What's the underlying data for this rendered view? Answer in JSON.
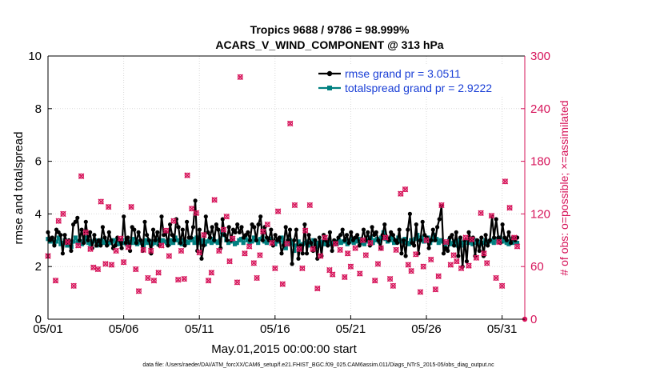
{
  "chart_data": {
    "type": "line",
    "title_line1": "Tropics 9688 / 9786 = 98.999%",
    "title_line2": "ACARS_V_WIND_COMPONENT @ 313 hPa",
    "xlabel": "May.01,2015 00:00:00 start",
    "ylabel_left": "rmse and totalspread",
    "ylabel_right": "# of obs: o=possible; ×=assimilated",
    "footer": "data file: /Users/raeder/DAI/ATM_forcXX/CAM6_setup/f.e21.FHIST_BGC.f09_025.CAM6assim.011/Diags_NTrS_2015-05/obs_diag_output.nc",
    "xlim": [
      0,
      31.5
    ],
    "ylim_left": [
      0,
      10
    ],
    "ylim_right": [
      0,
      300
    ],
    "x_ticks": [
      {
        "v": 0,
        "label": "05/01"
      },
      {
        "v": 5,
        "label": "05/06"
      },
      {
        "v": 10,
        "label": "05/11"
      },
      {
        "v": 15,
        "label": "05/16"
      },
      {
        "v": 20,
        "label": "05/21"
      },
      {
        "v": 25,
        "label": "05/26"
      },
      {
        "v": 30,
        "label": "05/31"
      }
    ],
    "y_ticks_left": [
      0,
      2,
      4,
      6,
      8,
      10
    ],
    "y_ticks_right": [
      0,
      60,
      120,
      180,
      240,
      300
    ],
    "colors": {
      "rmse": "#000000",
      "spread": "#008080",
      "obs": "#d6145a"
    },
    "series": [
      {
        "name": "rmse",
        "label": "rmse grand pr = 3.0511",
        "axis": "left",
        "values": [
          3.3,
          3.0,
          3.1,
          2.8,
          3.4,
          3.3,
          3.2,
          2.5,
          3.2,
          2.9,
          3.0,
          2.6,
          3.6,
          3.7,
          3.85,
          3.0,
          3.4,
          2.9,
          3.7,
          3.0,
          3.3,
          2.7,
          3.2,
          2.8,
          3.0,
          2.8,
          3.5,
          3.1,
          2.8,
          3.3,
          3.0,
          2.7,
          2.8,
          3.1,
          3.0,
          2.7,
          3.9,
          2.9,
          3.1,
          2.6,
          3.5,
          3.4,
          2.9,
          3.3,
          3.0,
          2.6,
          3.7,
          3.2,
          3.0,
          2.5,
          3.4,
          3.0,
          3.3,
          2.8,
          3.9,
          3.2,
          3.3,
          2.8,
          3.6,
          3.2,
          3.0,
          3.8,
          3.5,
          2.9,
          3.4,
          2.8,
          3.7,
          3.1,
          3.1,
          3.5,
          4.5,
          2.6,
          3.4,
          2.3,
          2.8,
          3.9,
          3.3,
          3.1,
          3.5,
          3.0,
          3.6,
          3.4,
          2.7,
          3.8,
          3.2,
          3.0,
          3.5,
          3.0,
          3.4,
          3.3,
          3.6,
          3.3,
          3.5,
          3.1,
          3.2,
          3.3,
          3.0,
          3.6,
          3.5,
          3.0,
          3.6,
          3.9,
          3.0,
          3.5,
          3.1,
          3.0,
          3.4,
          2.8,
          3.2,
          3.0,
          3.1,
          2.5,
          2.8,
          3.5,
          3.0,
          3.4,
          2.1,
          3.0,
          3.4,
          2.3,
          2.8,
          2.5,
          3.6,
          2.5,
          3.2,
          2.9,
          2.6,
          3.0,
          2.3,
          3.1,
          2.4,
          3.2,
          3.0,
          2.8,
          3.3,
          2.6,
          3.0,
          2.9,
          3.1,
          3.2,
          3.4,
          3.0,
          3.2,
          2.9,
          3.3,
          3.0,
          3.1,
          3.2,
          2.8,
          3.0,
          3.4,
          3.0,
          3.3,
          2.8,
          3.5,
          3.2,
          3.3,
          3.0,
          2.7,
          3.2,
          3.6,
          3.1,
          3.0,
          3.3,
          3.2,
          3.0,
          2.9,
          3.4,
          2.5,
          3.0,
          2.4,
          3.4,
          4.0,
          2.9,
          2.8,
          3.6,
          2.5,
          3.0,
          3.7,
          3.2,
          3.1,
          2.7,
          3.0,
          3.4,
          3.0,
          3.5,
          3.8,
          4.3,
          2.5,
          2.7,
          2.6,
          3.1,
          3.2,
          2.8,
          3.3,
          2.4,
          3.1,
          2.0,
          3.0,
          2.2,
          3.3,
          3.0,
          3.1,
          2.4,
          3.0,
          2.6,
          3.1,
          2.4,
          3.2,
          2.8,
          3.0,
          3.9,
          3.1,
          3.8,
          3.1,
          2.9,
          3.6,
          3.1,
          3.0,
          3.3,
          2.9,
          3.1,
          3.0,
          3.1
        ]
      },
      {
        "name": "totalspread",
        "label": "totalspread grand pr = 2.9222",
        "axis": "left",
        "values": [
          3.05,
          2.95,
          3.0,
          2.9,
          2.95,
          3.1,
          2.85,
          2.9,
          3.0,
          2.8,
          2.9,
          2.75,
          2.95,
          3.1,
          2.9,
          2.95,
          2.85,
          3.0,
          3.1,
          2.9,
          2.85,
          2.95,
          3.0,
          2.8,
          2.85,
          3.0,
          2.9,
          2.95,
          2.85,
          2.9,
          2.95,
          3.0,
          2.9,
          2.85,
          2.9,
          3.0,
          2.9,
          2.85,
          2.95,
          2.9,
          3.05,
          2.9,
          2.85,
          2.95,
          2.9,
          2.8,
          3.0,
          2.9,
          2.95,
          2.85,
          2.9,
          3.0,
          2.85,
          2.9,
          3.0,
          2.95,
          2.9,
          2.85,
          3.0,
          2.9,
          3.1,
          3.0,
          2.9,
          2.85,
          3.0,
          2.95,
          2.9,
          3.0,
          3.05,
          2.9,
          3.1,
          2.95,
          2.9,
          3.0,
          2.85,
          2.95,
          3.0,
          2.9,
          3.05,
          2.95,
          2.9,
          3.0,
          3.3,
          3.2,
          3.0,
          2.9,
          2.95,
          3.0,
          2.85,
          2.9,
          3.0,
          3.05,
          2.9,
          3.1,
          3.0,
          2.9,
          2.95,
          3.1,
          3.0,
          2.9,
          3.05,
          3.1,
          2.95,
          2.9,
          3.0,
          3.05,
          2.9,
          2.85,
          2.95,
          3.0,
          3.1,
          2.9,
          2.7,
          2.85,
          3.0,
          2.9,
          2.6,
          2.8,
          2.95,
          2.75,
          2.85,
          2.9,
          2.95,
          2.8,
          2.9,
          3.0,
          2.75,
          2.9,
          2.8,
          2.95,
          2.85,
          2.9,
          3.0,
          2.85,
          2.9,
          2.95,
          2.85,
          3.0,
          2.9,
          2.95,
          3.0,
          2.85,
          2.95,
          3.05,
          2.9,
          2.95,
          3.0,
          3.05,
          2.9,
          2.85,
          3.0,
          2.95,
          3.1,
          2.9,
          3.0,
          3.05,
          2.95,
          3.1,
          3.3,
          3.05,
          2.95,
          3.0,
          3.1,
          2.9,
          3.0,
          3.1,
          2.95,
          3.0,
          3.05,
          2.9,
          2.85,
          3.0,
          2.9,
          3.05,
          3.2,
          3.0,
          3.1,
          2.95,
          3.0,
          3.1,
          2.9,
          3.0,
          3.2,
          3.05,
          2.9,
          3.0,
          2.95,
          2.8,
          2.9,
          3.0,
          2.85,
          2.9,
          2.95,
          2.8,
          3.0,
          2.9,
          2.8,
          3.0,
          2.9,
          2.95,
          2.85,
          3.0,
          2.9,
          2.95,
          2.85,
          2.9,
          3.0,
          2.85,
          2.95,
          3.0,
          2.9,
          3.05,
          2.95,
          3.1,
          2.95,
          3.0,
          2.9,
          2.85,
          2.95,
          2.9,
          3.0,
          2.9
        ]
      },
      {
        "name": "obs_possible",
        "label": "o=possible",
        "axis": "right",
        "points": [
          [
            0.0,
            72
          ],
          [
            0.5,
            44
          ],
          [
            0.7,
            112
          ],
          [
            1.0,
            120
          ],
          [
            1.3,
            88
          ],
          [
            1.7,
            38
          ],
          [
            2.0,
            84
          ],
          [
            2.2,
            163
          ],
          [
            2.5,
            99
          ],
          [
            2.8,
            80
          ],
          [
            3.0,
            59
          ],
          [
            3.3,
            57
          ],
          [
            3.5,
            134
          ],
          [
            3.8,
            63
          ],
          [
            4.0,
            128
          ],
          [
            4.2,
            62
          ],
          [
            4.5,
            78
          ],
          [
            4.8,
            92
          ],
          [
            5.0,
            65
          ],
          [
            5.3,
            82
          ],
          [
            5.5,
            128
          ],
          [
            5.8,
            57
          ],
          [
            6.0,
            32
          ],
          [
            6.3,
            79
          ],
          [
            6.6,
            47
          ],
          [
            6.8,
            78
          ],
          [
            7.0,
            44
          ],
          [
            7.3,
            53
          ],
          [
            7.5,
            84
          ],
          [
            7.8,
            101
          ],
          [
            8.0,
            72
          ],
          [
            8.3,
            112
          ],
          [
            8.6,
            45
          ],
          [
            8.8,
            78
          ],
          [
            9.0,
            46
          ],
          [
            9.2,
            164
          ],
          [
            9.5,
            126
          ],
          [
            9.8,
            121
          ],
          [
            10.0,
            76
          ],
          [
            10.3,
            96
          ],
          [
            10.6,
            44
          ],
          [
            10.8,
            53
          ],
          [
            11.0,
            136
          ],
          [
            11.3,
            78
          ],
          [
            11.6,
            102
          ],
          [
            11.8,
            117
          ],
          [
            12.0,
            66
          ],
          [
            12.2,
            92
          ],
          [
            12.5,
            42
          ],
          [
            12.7,
            276
          ],
          [
            13.0,
            75
          ],
          [
            13.3,
            83
          ],
          [
            13.6,
            64
          ],
          [
            13.8,
            47
          ],
          [
            14.0,
            73
          ],
          [
            14.2,
            100
          ],
          [
            14.5,
            108
          ],
          [
            14.8,
            87
          ],
          [
            15.0,
            58
          ],
          [
            15.2,
            123
          ],
          [
            15.5,
            40
          ],
          [
            15.8,
            86
          ],
          [
            16.0,
            223
          ],
          [
            16.3,
            130
          ],
          [
            16.6,
            80
          ],
          [
            16.8,
            58
          ],
          [
            17.0,
            101
          ],
          [
            17.3,
            130
          ],
          [
            17.5,
            80
          ],
          [
            17.8,
            35
          ],
          [
            18.0,
            72
          ],
          [
            18.3,
            93
          ],
          [
            18.6,
            56
          ],
          [
            18.8,
            51
          ],
          [
            19.0,
            86
          ],
          [
            19.3,
            79
          ],
          [
            19.6,
            48
          ],
          [
            19.8,
            75
          ],
          [
            20.0,
            60
          ],
          [
            20.3,
            81
          ],
          [
            20.6,
            52
          ],
          [
            20.8,
            90
          ],
          [
            21.0,
            73
          ],
          [
            21.3,
            87
          ],
          [
            21.6,
            44
          ],
          [
            21.8,
            63
          ],
          [
            22.0,
            81
          ],
          [
            22.3,
            93
          ],
          [
            22.6,
            46
          ],
          [
            22.8,
            38
          ],
          [
            23.0,
            79
          ],
          [
            23.3,
            143
          ],
          [
            23.6,
            148
          ],
          [
            23.8,
            62
          ],
          [
            24.0,
            55
          ],
          [
            24.3,
            74
          ],
          [
            24.6,
            31
          ],
          [
            24.8,
            60
          ],
          [
            25.0,
            90
          ],
          [
            25.3,
            68
          ],
          [
            25.6,
            34
          ],
          [
            25.8,
            49
          ],
          [
            26.0,
            130
          ],
          [
            26.3,
            88
          ],
          [
            26.6,
            62
          ],
          [
            26.8,
            73
          ],
          [
            27.0,
            66
          ],
          [
            27.3,
            58
          ],
          [
            27.6,
            93
          ],
          [
            27.8,
            61
          ],
          [
            28.0,
            91
          ],
          [
            28.3,
            70
          ],
          [
            28.6,
            121
          ],
          [
            28.8,
            75
          ],
          [
            29.0,
            64
          ],
          [
            29.3,
            118
          ],
          [
            29.6,
            47
          ],
          [
            29.8,
            88
          ],
          [
            30.0,
            38
          ],
          [
            30.2,
            157
          ],
          [
            30.5,
            127
          ],
          [
            30.8,
            93
          ],
          [
            31.0,
            83
          ]
        ]
      }
    ]
  }
}
